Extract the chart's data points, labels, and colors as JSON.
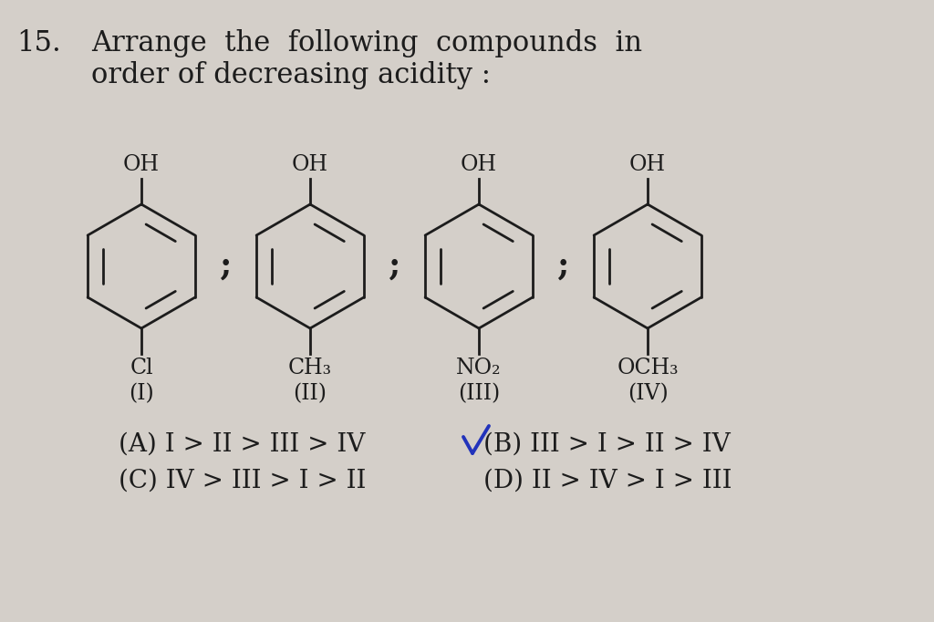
{
  "background_color": "#d4cfc9",
  "question_number": "15.",
  "question_text_line1": "Arrange  the  following  compounds  in",
  "question_text_line2": "order of decreasing acidity :",
  "compounds": [
    {
      "label_top": "OH",
      "substituent": "Cl",
      "roman": "(I)"
    },
    {
      "label_top": "OH",
      "substituent": "CH₃",
      "roman": "(II)"
    },
    {
      "label_top": "OH",
      "substituent": "NO₂",
      "roman": "(III)"
    },
    {
      "label_top": "OH",
      "substituent": "OCH₃",
      "roman": "(IV)"
    }
  ],
  "options_line1_left": "(A) I > II > III > IV",
  "options_line1_right": "(B) III > I > II > IV",
  "options_line2_left": "(C) IV > III > I > II",
  "options_line2_right": "(D) II > IV > I > III",
  "text_color": "#1c1c1c",
  "ring_color": "#1c1c1c",
  "font_size_question": 22,
  "font_size_label": 17,
  "font_size_option": 20
}
